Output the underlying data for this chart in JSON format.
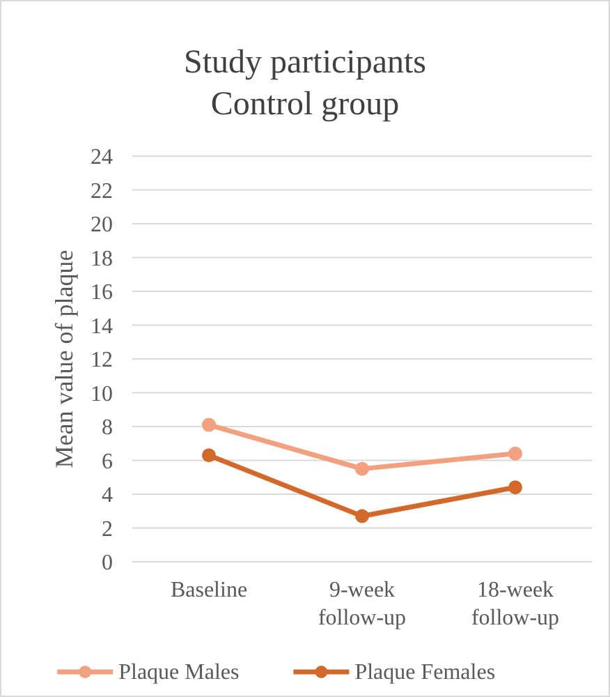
{
  "chart_data": {
    "type": "line",
    "title": "Study participants\nControl group",
    "ylabel": "Mean value of plaque",
    "categories": [
      "Baseline",
      "9-week follow-up",
      "18-week follow-up"
    ],
    "series": [
      {
        "name": "Plaque Males",
        "color": "#f2a07e",
        "values": [
          8.1,
          5.5,
          6.4
        ]
      },
      {
        "name": "Plaque Females",
        "color": "#d2692b",
        "values": [
          6.3,
          2.7,
          4.4
        ]
      }
    ],
    "ylim": [
      0,
      24
    ],
    "yticks": [
      0,
      2,
      4,
      6,
      8,
      10,
      12,
      14,
      16,
      18,
      20,
      22,
      24
    ],
    "grid": "y",
    "legend": "bottom",
    "marker": "circle",
    "line_style": "solid"
  }
}
